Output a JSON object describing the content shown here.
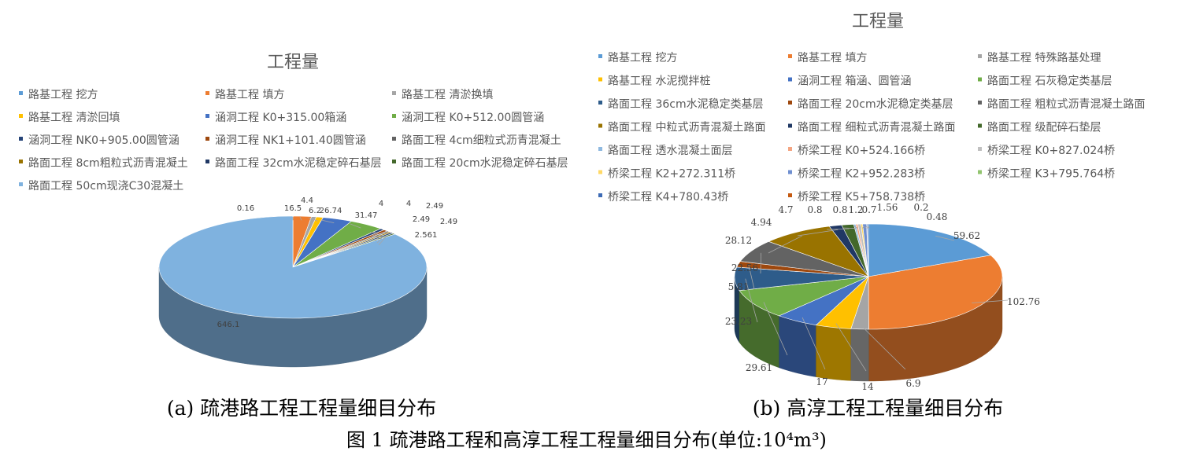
{
  "chart_data": [
    {
      "type": "pie",
      "style": "3d",
      "title": "工程量",
      "caption": "(a) 疏港路工程工程量细目分布",
      "legend_position": "top",
      "slices": [
        {
          "label": "路基工程 挖方",
          "value": 0.16,
          "color": "#5B9BD5"
        },
        {
          "label": "路基工程 填方",
          "value": 16.5,
          "color": "#ED7D31"
        },
        {
          "label": "路基工程 清淤换填",
          "value": 4.4,
          "color": "#A5A5A5"
        },
        {
          "label": "路基工程 清淤回填",
          "value": 6.2,
          "color": "#FFC000"
        },
        {
          "label": "涵洞工程 K0+315.00箱涵",
          "value": 26.74,
          "color": "#4472C4"
        },
        {
          "label": "涵洞工程 K0+512.00圆管涵",
          "value": 31.47,
          "color": "#70AD47"
        },
        {
          "label": "涵洞工程 NK0+905.00圆管涵",
          "value": 4,
          "color": "#264478"
        },
        {
          "label": "涵洞工程 NK1+101.40圆管涵",
          "value": 4,
          "color": "#9E480E"
        },
        {
          "label": "路面工程 4cm细粒式沥青混凝土",
          "value": 2.49,
          "color": "#636363"
        },
        {
          "label": "路面工程 8cm粗粒式沥青混凝土",
          "value": 2.49,
          "color": "#997300"
        },
        {
          "label": "路面工程 32cm水泥稳定碎石基层",
          "value": 2.49,
          "color": "#203864"
        },
        {
          "label": "路面工程 20cm水泥稳定碎石基层",
          "value": 2.561,
          "color": "#43682B"
        },
        {
          "label": "路面工程 50cm现浇C30混凝土",
          "value": 646.1,
          "color": "#7FB2DF"
        }
      ]
    },
    {
      "type": "pie",
      "style": "3d",
      "title": "工程量",
      "caption": "(b) 高淳工程工程量细目分布",
      "legend_position": "top",
      "slices": [
        {
          "label": "路基工程 挖方",
          "value": 59.62,
          "color": "#5B9BD5"
        },
        {
          "label": "路基工程 填方",
          "value": 102.76,
          "color": "#ED7D31"
        },
        {
          "label": "路基工程 特殊路基处理",
          "value": 6.9,
          "color": "#A5A5A5"
        },
        {
          "label": "路基工程 水泥搅拌桩",
          "value": 14,
          "color": "#FFC000"
        },
        {
          "label": "涵洞工程 箱涵、圆管涵",
          "value": 17,
          "color": "#4472C4"
        },
        {
          "label": "路面工程 石灰稳定类基层",
          "value": 29.61,
          "color": "#70AD47"
        },
        {
          "label": "路面工程 36cm水泥稳定类基层",
          "value": 23.23,
          "color": "#2E5C8A"
        },
        {
          "label": "路面工程 20cm水泥稳定类基层",
          "value": 5.81,
          "color": "#9E480E"
        },
        {
          "label": "路面工程 粗粒式沥青混凝土路面",
          "value": 22.56,
          "color": "#636363"
        },
        {
          "label": "路面工程 中粒式沥青混凝土路面",
          "value": 28.12,
          "color": "#997300"
        },
        {
          "label": "路面工程 细粒式沥青混凝土路面",
          "value": 4.94,
          "color": "#203864"
        },
        {
          "label": "路面工程 级配碎石垫层",
          "value": 4.7,
          "color": "#43682B"
        },
        {
          "label": "路面工程 透水混凝土面层",
          "value": 0.8,
          "color": "#8FB9E0"
        },
        {
          "label": "桥梁工程 K0+524.166桥",
          "value": 0.8,
          "color": "#F4A582"
        },
        {
          "label": "桥梁工程 K0+827.024桥",
          "value": 1.2,
          "color": "#C0C0C0"
        },
        {
          "label": "桥梁工程 K2+272.311桥",
          "value": 0.7,
          "color": "#FFD966"
        },
        {
          "label": "桥梁工程 K2+952.283桥",
          "value": 1.56,
          "color": "#6F8FD0"
        },
        {
          "label": "桥梁工程 K3+795.764桥",
          "value": 0.2,
          "color": "#92C46F"
        },
        {
          "label": "桥梁工程 K4+780.43桥",
          "value": 0.48,
          "color": "#3D6BB5"
        },
        {
          "label": "桥梁工程 K5+758.738桥",
          "value": 0,
          "color": "#C55A11"
        }
      ]
    }
  ],
  "figure_caption": "图 1  疏港路工程和高淳工程工程量细目分布(单位:10⁴m³)"
}
